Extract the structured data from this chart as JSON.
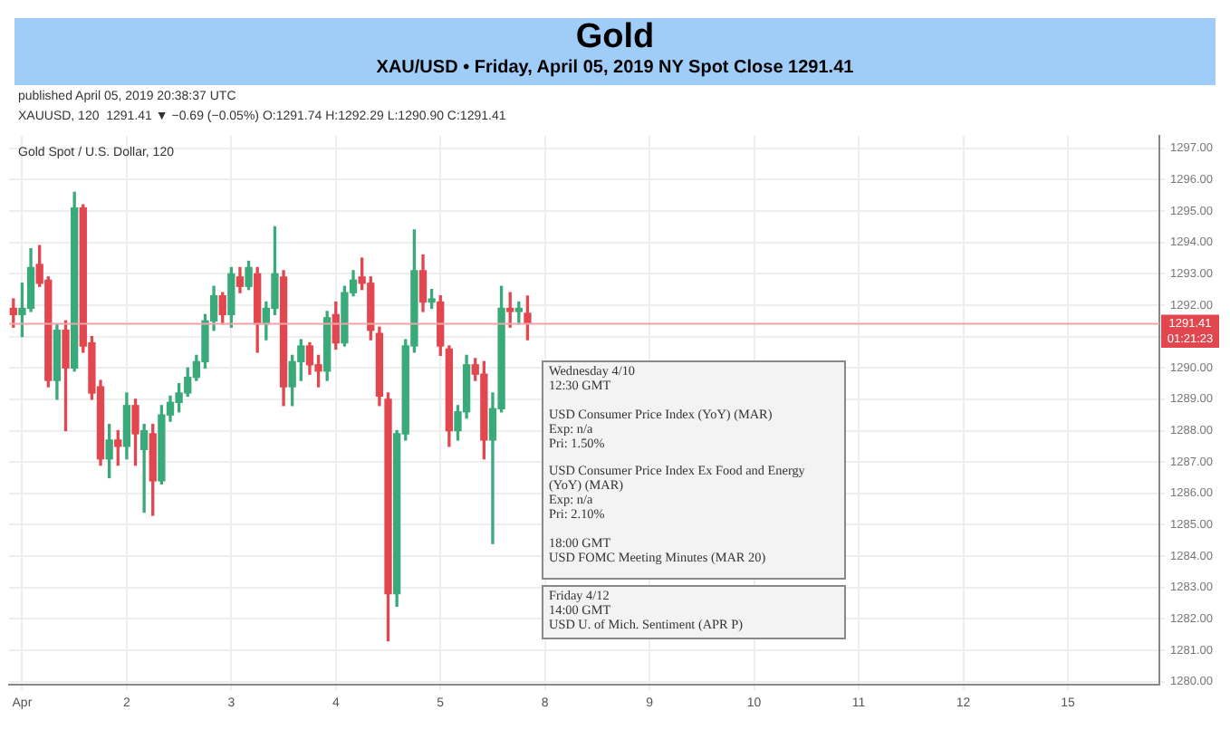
{
  "chart_data": {
    "type": "candlestick",
    "title": "Gold",
    "subtitle": "XAU/USD • Friday, April 05, 2019 NY Spot Close 1291.41",
    "annotations": [
      "published April 05, 2019 20:38:37 UTC",
      "XAUUSD, 120  1291.41 ▼ −0.69 (−0.05%) O:1291.74 H:1292.29 L:1290.90 C:1291.41",
      "Gold Spot / U.S. Dollar, 120",
      "Wednesday 4/10\n12:30 GMT\n\nUSD Consumer Price Index (YoY) (MAR)\nExp: n/a\nPri: 1.50%\n\nUSD Consumer Price Index Ex Food and Energy (YoY) (MAR)\nExp: n/a\nPri: 2.10%\n\n18:00 GMT\nUSD FOMC Meeting Minutes (MAR 20)",
      "Friday 4/12\n14:00 GMT\nUSD U. of Mich. Sentiment (APR P)",
      "01:21:23"
    ],
    "categories": [
      null,
      "Apr",
      null,
      null,
      null,
      null,
      null,
      null,
      null,
      null,
      null,
      null,
      null,
      "2",
      null,
      null,
      null,
      null,
      null,
      null,
      null,
      null,
      null,
      null,
      null,
      "3",
      null,
      null,
      null,
      null,
      null,
      null,
      null,
      null,
      null,
      null,
      null,
      "4",
      null,
      null,
      null,
      null,
      null,
      null,
      null,
      null,
      null,
      null,
      null,
      "5",
      null,
      null,
      null,
      null,
      null,
      null,
      null,
      null,
      null,
      null,
      null,
      "8",
      null,
      null,
      null,
      null,
      null,
      null,
      null,
      null,
      null,
      null,
      null,
      "9",
      null,
      null,
      null,
      null,
      null,
      null,
      null,
      null,
      null,
      null,
      null,
      "10",
      null,
      null,
      null,
      null,
      null,
      null,
      null,
      null,
      null,
      null,
      null,
      "11",
      null,
      null,
      null,
      null,
      null,
      null,
      null,
      null,
      null,
      null,
      null,
      "12",
      null,
      null,
      null,
      null,
      null,
      null,
      null,
      null,
      null,
      null,
      null,
      "15",
      null,
      null,
      null,
      null,
      null,
      null,
      null,
      null,
      null,
      null
    ],
    "ohlc": [
      [
        1291.9,
        1292.2,
        1291.3,
        1291.7
      ],
      [
        1291.7,
        1292.7,
        1291.0,
        1291.9
      ],
      [
        1291.9,
        1293.8,
        1291.8,
        1293.2
      ],
      [
        1293.3,
        1293.9,
        1292.6,
        1292.7
      ],
      [
        1292.8,
        1292.9,
        1289.4,
        1289.6
      ],
      [
        1289.6,
        1291.4,
        1289.0,
        1291.2
      ],
      [
        1291.2,
        1291.5,
        1288.0,
        1290.0
      ],
      [
        1290.0,
        1295.6,
        1289.9,
        1295.1
      ],
      [
        1295.1,
        1295.2,
        1290.5,
        1290.7
      ],
      [
        1290.8,
        1291.0,
        1289.0,
        1289.2
      ],
      [
        1289.4,
        1289.6,
        1286.9,
        1287.1
      ],
      [
        1287.1,
        1288.2,
        1286.5,
        1287.7
      ],
      [
        1287.7,
        1288.0,
        1286.9,
        1287.5
      ],
      [
        1287.5,
        1289.2,
        1287.1,
        1288.8
      ],
      [
        1288.8,
        1289.0,
        1286.9,
        1287.9
      ],
      [
        1287.4,
        1288.2,
        1285.4,
        1288.0
      ],
      [
        1287.9,
        1288.2,
        1285.3,
        1286.4
      ],
      [
        1286.4,
        1288.8,
        1286.3,
        1288.5
      ],
      [
        1288.5,
        1289.1,
        1288.3,
        1288.9
      ],
      [
        1288.9,
        1289.5,
        1288.6,
        1289.2
      ],
      [
        1289.2,
        1290.0,
        1289.1,
        1289.7
      ],
      [
        1289.7,
        1290.4,
        1289.6,
        1290.2
      ],
      [
        1290.2,
        1291.7,
        1290.0,
        1291.5
      ],
      [
        1291.5,
        1292.6,
        1291.2,
        1292.3
      ],
      [
        1292.3,
        1292.4,
        1291.4,
        1291.7
      ],
      [
        1291.7,
        1293.2,
        1291.3,
        1293.0
      ],
      [
        1292.9,
        1293.2,
        1292.4,
        1292.6
      ],
      [
        1292.6,
        1293.4,
        1292.5,
        1293.2
      ],
      [
        1293.0,
        1293.2,
        1290.5,
        1291.4
      ],
      [
        1291.4,
        1292.1,
        1290.9,
        1291.9
      ],
      [
        1291.9,
        1294.5,
        1291.7,
        1293.0
      ],
      [
        1292.9,
        1293.1,
        1288.8,
        1289.4
      ],
      [
        1289.4,
        1290.4,
        1288.8,
        1290.2
      ],
      [
        1290.2,
        1290.9,
        1289.6,
        1290.7
      ],
      [
        1290.7,
        1290.8,
        1289.8,
        1290.1
      ],
      [
        1290.1,
        1290.4,
        1289.4,
        1289.9
      ],
      [
        1289.9,
        1291.8,
        1289.6,
        1291.6
      ],
      [
        1291.7,
        1292.1,
        1290.6,
        1290.8
      ],
      [
        1290.8,
        1292.6,
        1290.7,
        1292.4
      ],
      [
        1292.4,
        1293.1,
        1292.3,
        1292.8
      ],
      [
        1292.9,
        1293.5,
        1292.5,
        1292.7
      ],
      [
        1292.7,
        1292.9,
        1290.9,
        1291.2
      ],
      [
        1291.1,
        1291.3,
        1288.8,
        1289.1
      ],
      [
        1289.0,
        1289.2,
        1281.3,
        1282.8
      ],
      [
        1282.8,
        1288.0,
        1282.4,
        1287.9
      ],
      [
        1287.9,
        1290.9,
        1287.7,
        1290.7
      ],
      [
        1290.7,
        1294.4,
        1290.5,
        1293.1
      ],
      [
        1293.1,
        1293.6,
        1291.8,
        1292.1
      ],
      [
        1292.1,
        1292.5,
        1291.9,
        1292.2
      ],
      [
        1292.1,
        1292.3,
        1290.4,
        1290.7
      ],
      [
        1290.6,
        1290.7,
        1287.5,
        1288.0
      ],
      [
        1288.0,
        1288.8,
        1287.7,
        1288.6
      ],
      [
        1288.6,
        1290.4,
        1288.4,
        1290.1
      ],
      [
        1290.1,
        1290.3,
        1289.6,
        1289.8
      ],
      [
        1289.8,
        1290.2,
        1287.1,
        1287.7
      ],
      [
        1287.7,
        1289.2,
        1284.4,
        1288.7
      ],
      [
        1288.7,
        1292.6,
        1288.6,
        1291.9
      ],
      [
        1291.9,
        1292.4,
        1291.3,
        1291.8
      ],
      [
        1291.8,
        1292.1,
        1291.4,
        1291.9
      ],
      [
        1291.74,
        1292.29,
        1290.9,
        1291.41
      ],
      null,
      null,
      null,
      null,
      null,
      null,
      null,
      null,
      null,
      null,
      null,
      null,
      null,
      null,
      null,
      null,
      null,
      null,
      null,
      null,
      null,
      null,
      null,
      null,
      null,
      null,
      null,
      null,
      null,
      null,
      null,
      null,
      null,
      null,
      null,
      null,
      null,
      null,
      null,
      null,
      null,
      null,
      null,
      null,
      null,
      null,
      null,
      null,
      null,
      null,
      null,
      null,
      null,
      null,
      null,
      null,
      null,
      null,
      null,
      null,
      null,
      null,
      null,
      null,
      null,
      null,
      null,
      null,
      null,
      null,
      null,
      null
    ],
    "colors": [
      "#e2474f",
      "#3aaa7a",
      "#3aaa7a",
      "#e2474f",
      "#e2474f",
      "#3aaa7a",
      "#e2474f",
      "#3aaa7a",
      "#e2474f",
      "#e2474f",
      "#e2474f",
      "#3aaa7a",
      "#e2474f",
      "#3aaa7a",
      "#e2474f",
      "#3aaa7a",
      "#e2474f",
      "#3aaa7a",
      "#3aaa7a",
      "#3aaa7a",
      "#3aaa7a",
      "#3aaa7a",
      "#3aaa7a",
      "#3aaa7a",
      "#e2474f",
      "#3aaa7a",
      "#e2474f",
      "#3aaa7a",
      "#e2474f",
      "#3aaa7a",
      "#3aaa7a",
      "#e2474f",
      "#3aaa7a",
      "#3aaa7a",
      "#e2474f",
      "#e2474f",
      "#3aaa7a",
      "#e2474f",
      "#3aaa7a",
      "#3aaa7a",
      "#e2474f",
      "#e2474f",
      "#e2474f",
      "#e2474f",
      "#3aaa7a",
      "#3aaa7a",
      "#3aaa7a",
      "#e2474f",
      "#3aaa7a",
      "#e2474f",
      "#e2474f",
      "#3aaa7a",
      "#3aaa7a",
      "#e2474f",
      "#e2474f",
      "#3aaa7a",
      "#3aaa7a",
      "#e2474f",
      "#3aaa7a",
      "#e2474f",
      null,
      null,
      null,
      null,
      null,
      null,
      null,
      null,
      null,
      null,
      null,
      null,
      null,
      null,
      null,
      null,
      null,
      null,
      null,
      null,
      null,
      null,
      null,
      null,
      null,
      null,
      null,
      null,
      null,
      null,
      null,
      null,
      null,
      null,
      null,
      null,
      null,
      null,
      null,
      null,
      null,
      null,
      null,
      null,
      null,
      null,
      null,
      null,
      null,
      null,
      null,
      null,
      null,
      null,
      null,
      null,
      null,
      null,
      null,
      null,
      null,
      null,
      null,
      null,
      null,
      null,
      null,
      null,
      null,
      null,
      null,
      null
    ],
    "ylim": [
      1279.9,
      1297.4
    ],
    "yticks": [
      {
        "value": 1280,
        "label": "1280.00"
      },
      {
        "value": 1281,
        "label": "1281.00"
      },
      {
        "value": 1282,
        "label": "1282.00"
      },
      {
        "value": 1283,
        "label": "1283.00"
      },
      {
        "value": 1284,
        "label": "1284.00"
      },
      {
        "value": 1285,
        "label": "1285.00"
      },
      {
        "value": 1286,
        "label": "1286.00"
      },
      {
        "value": 1287,
        "label": "1287.00"
      },
      {
        "value": 1288,
        "label": "1288.00"
      },
      {
        "value": 1289,
        "label": "1289.00"
      },
      {
        "value": 1290,
        "label": "1290.00"
      },
      {
        "value": 1291,
        "label": null
      },
      {
        "value": 1292,
        "label": "1292.00"
      },
      {
        "value": 1293,
        "label": "1293.00"
      },
      {
        "value": 1294,
        "label": "1294.00"
      },
      {
        "value": 1295,
        "label": "1295.00"
      },
      {
        "value": 1296,
        "label": "1296.00"
      },
      {
        "value": 1297,
        "label": "1297.00"
      }
    ],
    "ref_lines": [
      {
        "axis": "y",
        "value": 1291.41,
        "label": "1291.41",
        "color": "#f2a3aa"
      }
    ],
    "grid": true,
    "legend": false
  }
}
